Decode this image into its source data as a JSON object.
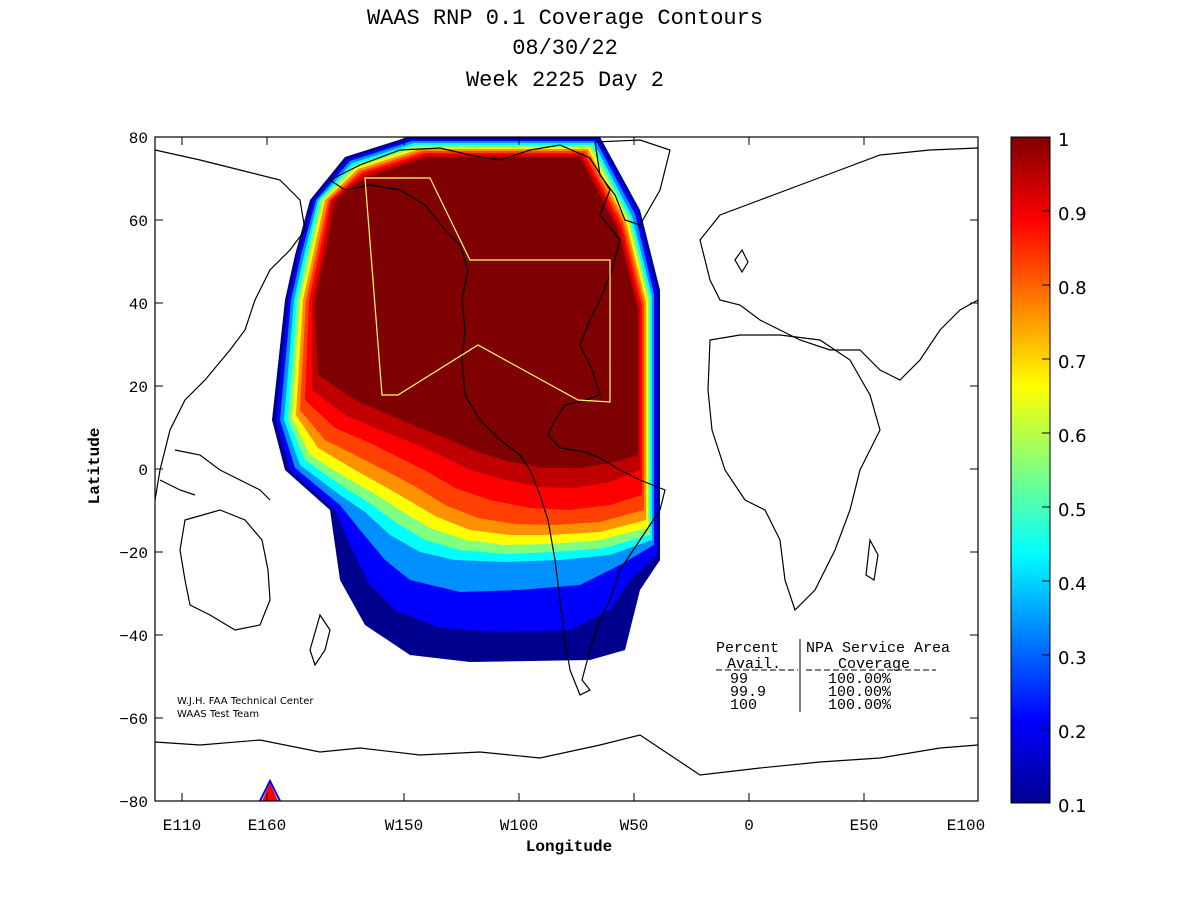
{
  "title": {
    "line1": "WAAS RNP 0.1 Coverage Contours",
    "line2": "08/30/22",
    "line3": "Week 2225 Day 2"
  },
  "axes": {
    "xlabel": "Longitude",
    "ylabel": "Latitude",
    "x_ticks": [
      "E110",
      "E160",
      "W150",
      "W100",
      "W50",
      "0",
      "E50",
      "E100"
    ],
    "y_ticks": [
      "80",
      "60",
      "40",
      "20",
      "0",
      "−20",
      "−40",
      "−60",
      "−80"
    ]
  },
  "colorbar": {
    "ticks": [
      "1",
      "0.9",
      "0.8",
      "0.7",
      "0.6",
      "0.5",
      "0.4",
      "0.3",
      "0.2",
      "0.1"
    ],
    "range": [
      0.1,
      1
    ],
    "colormap": "jet"
  },
  "credits": {
    "line1": "W.J.H. FAA Technical Center",
    "line2": "WAAS Test Team"
  },
  "stats_table": {
    "header1_col1": "Percent",
    "header1_col2": "NPA Service Area",
    "header2_col1": "Avail.",
    "header2_col2": "Coverage",
    "rows": [
      {
        "avail": "99",
        "coverage": "100.00%"
      },
      {
        "avail": "99.9",
        "coverage": "100.00%"
      },
      {
        "avail": "100",
        "coverage": "100.00%"
      }
    ]
  },
  "colors": {
    "dark_red": "#7f0000",
    "red": "#ff0000",
    "orange": "#ff8000",
    "yellow": "#ffff00",
    "cyan": "#00ffff",
    "blue": "#0000ff",
    "navy": "#00008f",
    "service_area_outline": "#ffff66"
  }
}
